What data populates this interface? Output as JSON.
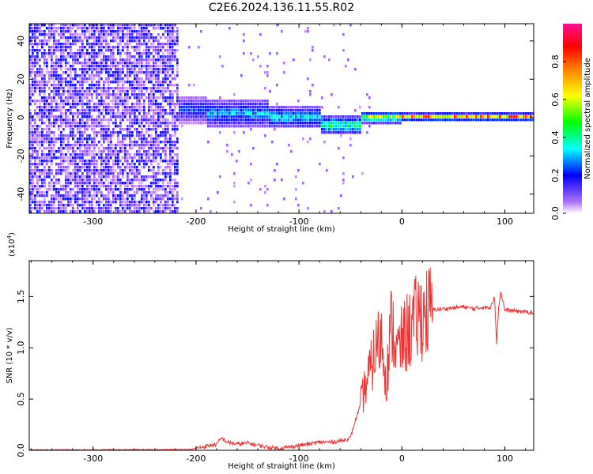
{
  "title": "C2E6.2024.136.11.55.R02",
  "colors": {
    "snr_line": "#ee3333",
    "band_low": "#7a2cf0",
    "band_mid": "#00e8d8",
    "band_high": "#ff2020",
    "colorbar_stops": [
      "#ffffff",
      "#b070ff",
      "#0000ff",
      "#00ffff",
      "#00ff00",
      "#ffff00",
      "#ff8000",
      "#ff0000",
      "#ff1090"
    ]
  },
  "chart_data": [
    {
      "type": "heatmap",
      "name": "spectrogram",
      "xlabel": "Height of straight line (km)",
      "ylabel": "Frequency (Hz)",
      "xlim": [
        -362,
        128
      ],
      "ylim": [
        -50,
        49
      ],
      "xticks": [
        -300,
        -200,
        -100,
        0,
        100
      ],
      "xtick_labels": [
        "-300",
        "-200",
        "-100",
        "0",
        "100"
      ],
      "yticks": [
        -40,
        -20,
        0,
        20,
        40
      ],
      "ytick_labels": [
        "-40",
        "-20",
        "0",
        "20",
        "40"
      ],
      "noise_region_x": [
        -362,
        -218
      ],
      "band_segments": [
        {
          "x": [
            -218,
            -190
          ],
          "freq_center": 4,
          "half_width": 7,
          "amplitude": 0.25
        },
        {
          "x": [
            -190,
            -130
          ],
          "freq_center": 2,
          "half_width": 8,
          "amplitude": 0.3
        },
        {
          "x": [
            -130,
            -80
          ],
          "freq_center": 0,
          "half_width": 6,
          "amplitude": 0.35
        },
        {
          "x": [
            -80,
            -40
          ],
          "freq_center": -4,
          "half_width": 5,
          "amplitude": 0.45
        },
        {
          "x": [
            -40,
            0
          ],
          "freq_center": 0,
          "half_width": 3,
          "amplitude": 0.6
        },
        {
          "x": [
            0,
            128
          ],
          "freq_center": 0,
          "half_width": 2,
          "amplitude": 0.85
        }
      ],
      "colorbar": {
        "label": "Normalized spectral amplitude",
        "range": [
          0,
          1
        ],
        "ticks": [
          0.0,
          0.2,
          0.4,
          0.6,
          0.8
        ],
        "tick_labels": [
          "0.0",
          "0.2",
          "0.4",
          "0.6",
          "0.8"
        ]
      }
    },
    {
      "type": "line",
      "name": "snr",
      "xlabel": "Height of straight line (km)",
      "ylabel": "SNR (10 * v/v)",
      "multiplier_label": "(x10",
      "multiplier_exp": "4",
      "multiplier_close": ")",
      "xlim": [
        -362,
        128
      ],
      "ylim": [
        0,
        1.85
      ],
      "xticks": [
        -300,
        -200,
        -100,
        0,
        100
      ],
      "xtick_labels": [
        "-300",
        "-200",
        "-100",
        "0",
        "100"
      ],
      "yticks": [
        0.0,
        0.5,
        1.0,
        1.5
      ],
      "ytick_labels": [
        "0.0",
        "0.5",
        "1.0",
        "1.5"
      ],
      "series": [
        {
          "x": [
            -362,
            -300,
            -250,
            -205,
            -195,
            -180,
            -175,
            -170,
            -160,
            -150,
            -140,
            -130,
            -120,
            -110,
            -100,
            -90,
            -80,
            -70,
            -60,
            -50,
            -45,
            -40,
            -35,
            -30,
            -25,
            -20,
            -15,
            -10,
            -5,
            0,
            5,
            10,
            15,
            20,
            30,
            40,
            50,
            60,
            70,
            80,
            85,
            90,
            92,
            94,
            96,
            100,
            110,
            120,
            128
          ],
          "y": [
            0.005,
            0.005,
            0.006,
            0.008,
            0.03,
            0.06,
            0.12,
            0.08,
            0.06,
            0.07,
            0.05,
            0.03,
            0.02,
            0.03,
            0.05,
            0.06,
            0.08,
            0.08,
            0.09,
            0.12,
            0.3,
            0.45,
            0.65,
            0.8,
            1.0,
            1.1,
            0.7,
            1.25,
            0.95,
            1.05,
            1.15,
            1.2,
            1.3,
            1.33,
            1.37,
            1.38,
            1.39,
            1.4,
            1.38,
            1.4,
            1.38,
            1.5,
            1.05,
            1.4,
            1.55,
            1.37,
            1.36,
            1.35,
            1.34
          ]
        }
      ]
    }
  ]
}
